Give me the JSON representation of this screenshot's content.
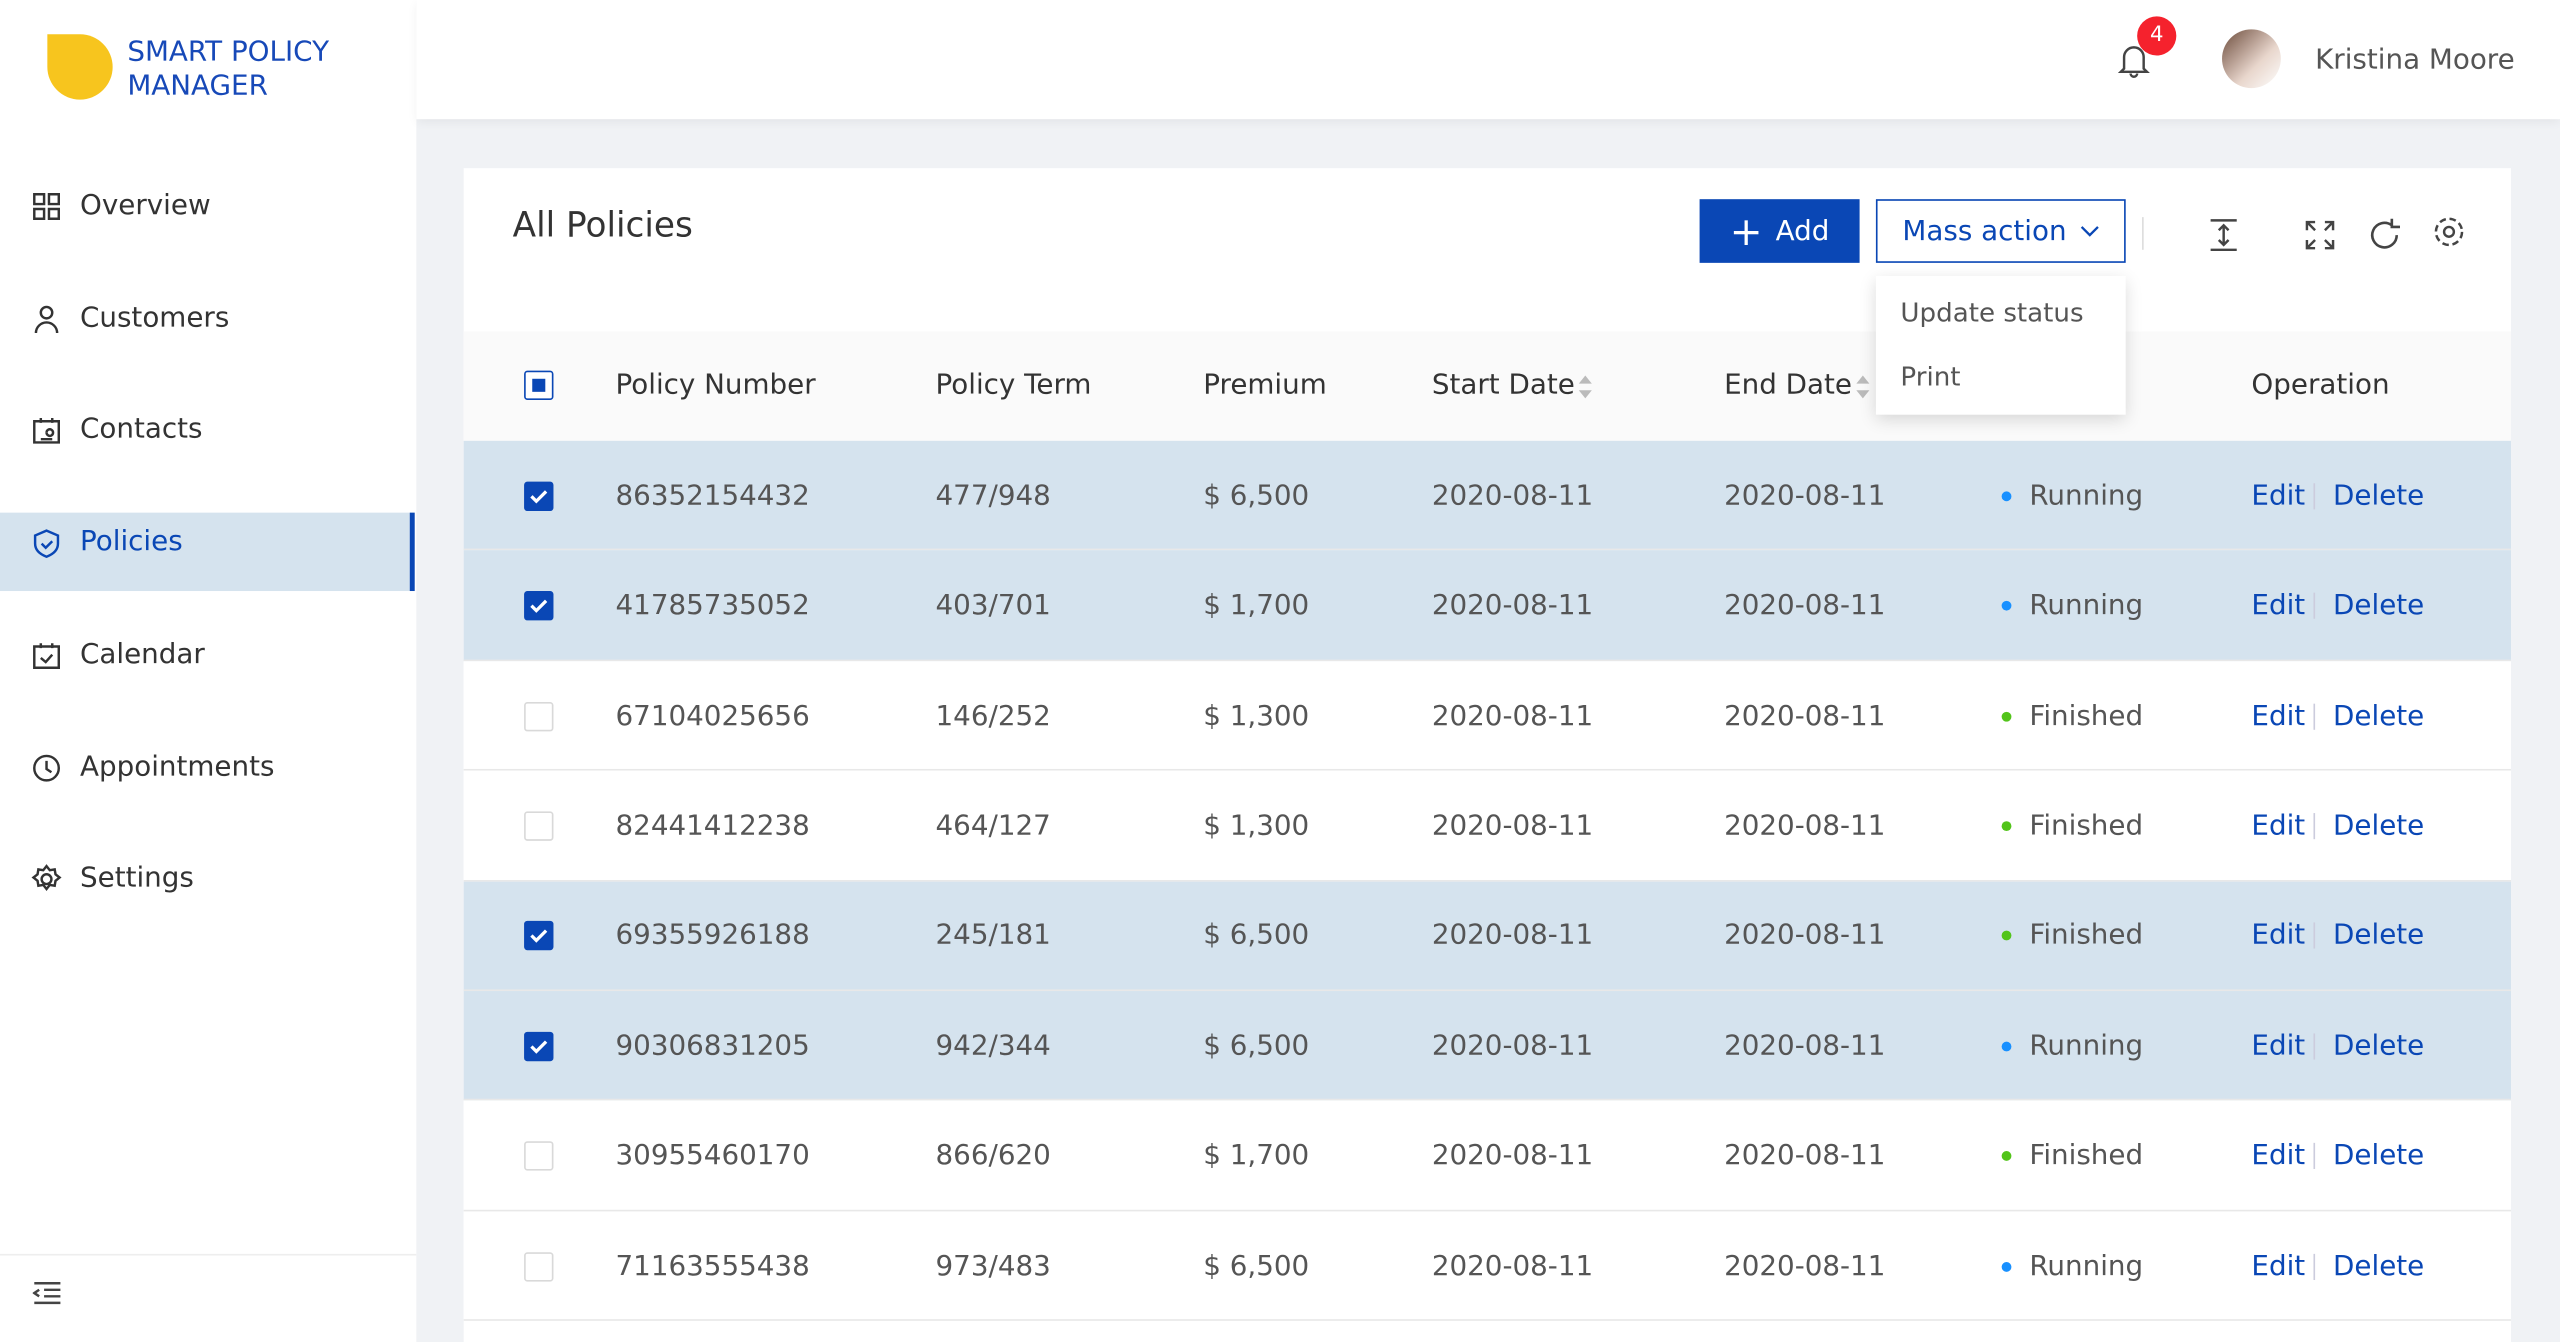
{
  "brand": [
    "SMART POLICY",
    "MANAGER"
  ],
  "nav": {
    "items": [
      "Overview",
      "Customers",
      "Contacts",
      "Policies",
      "Calendar",
      "Appointments",
      "Settings"
    ],
    "active": 3
  },
  "header": {
    "notifications": 4,
    "user": "Kristina Moore"
  },
  "page": {
    "title": "All Policies",
    "add": "Add",
    "mass_action": "Mass action",
    "menu": [
      "Update status",
      "Print"
    ]
  },
  "table": {
    "columns": [
      "Policy Number",
      "Policy Term",
      "Premium",
      "Start Date",
      "End Date",
      "Operation"
    ],
    "row_actions": [
      "Edit",
      "Delete"
    ],
    "status_colors": {
      "Running": "#1890ff",
      "Finished": "#52c41a"
    },
    "rows": [
      {
        "selected": true,
        "number": "86352154432",
        "term": "477/948",
        "premium": "$ 6,500",
        "start": "2020-08-11",
        "end": "2020-08-11",
        "status": "Running"
      },
      {
        "selected": true,
        "number": "41785735052",
        "term": "403/701",
        "premium": "$ 1,700",
        "start": "2020-08-11",
        "end": "2020-08-11",
        "status": "Running"
      },
      {
        "selected": false,
        "number": "67104025656",
        "term": "146/252",
        "premium": "$ 1,300",
        "start": "2020-08-11",
        "end": "2020-08-11",
        "status": "Finished"
      },
      {
        "selected": false,
        "number": "82441412238",
        "term": "464/127",
        "premium": "$ 1,300",
        "start": "2020-08-11",
        "end": "2020-08-11",
        "status": "Finished"
      },
      {
        "selected": true,
        "number": "69355926188",
        "term": "245/181",
        "premium": "$ 6,500",
        "start": "2020-08-11",
        "end": "2020-08-11",
        "status": "Finished"
      },
      {
        "selected": true,
        "number": "90306831205",
        "term": "942/344",
        "premium": "$ 6,500",
        "start": "2020-08-11",
        "end": "2020-08-11",
        "status": "Running"
      },
      {
        "selected": false,
        "number": "30955460170",
        "term": "866/620",
        "premium": "$ 1,700",
        "start": "2020-08-11",
        "end": "2020-08-11",
        "status": "Finished"
      },
      {
        "selected": false,
        "number": "71163555438",
        "term": "973/483",
        "premium": "$ 6,500",
        "start": "2020-08-11",
        "end": "2020-08-11",
        "status": "Running"
      }
    ]
  }
}
